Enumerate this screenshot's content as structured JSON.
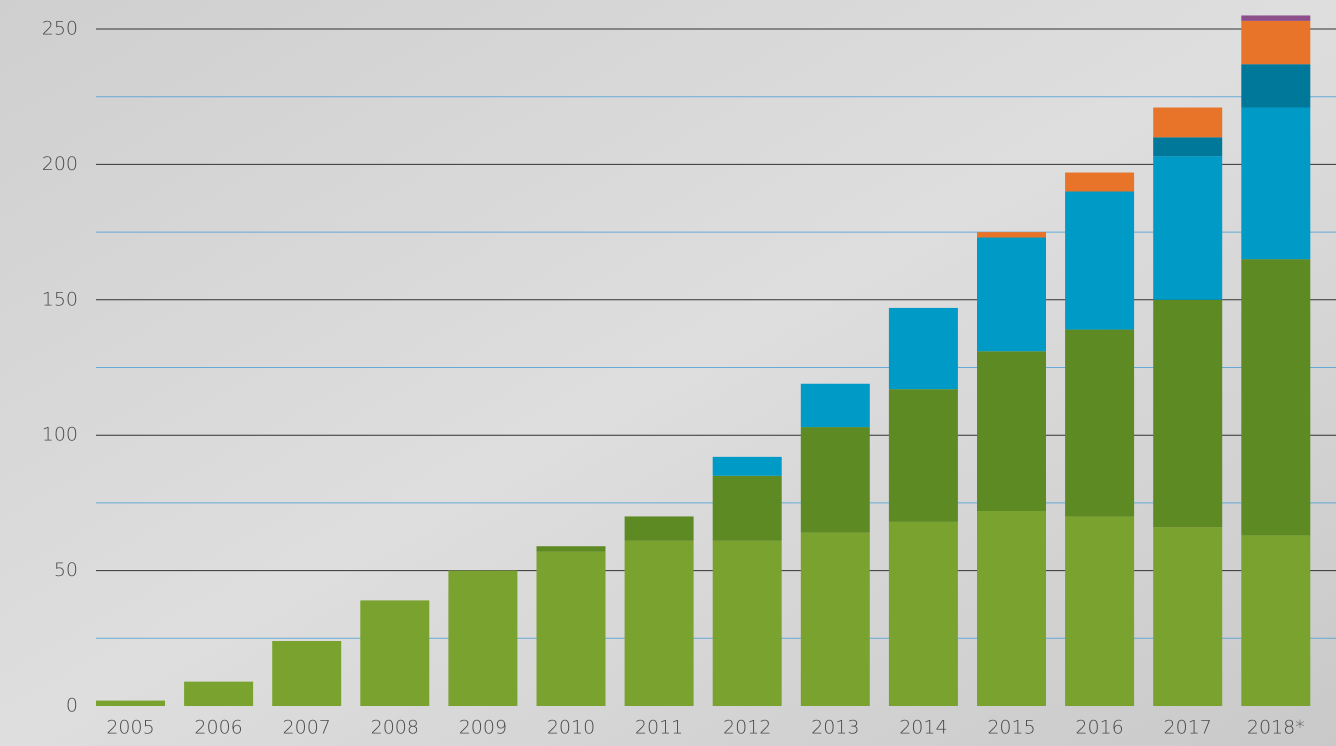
{
  "chart_data": {
    "type": "stacked-bar",
    "categories": [
      "2005",
      "2006",
      "2007",
      "2008",
      "2009",
      "2010",
      "2011",
      "2012",
      "2013",
      "2014",
      "2015",
      "2016",
      "2017",
      "2018*"
    ],
    "series": [
      {
        "color": "#7aa22f",
        "values": [
          2,
          9,
          24,
          39,
          50,
          57,
          61,
          61,
          64,
          68,
          72,
          70,
          66,
          63
        ]
      },
      {
        "color": "#5e8a24",
        "values": [
          null,
          null,
          null,
          null,
          null,
          2,
          9,
          24,
          39,
          49,
          59,
          69,
          84,
          102
        ]
      },
      {
        "color": "#009ac7",
        "values": [
          null,
          null,
          null,
          null,
          null,
          null,
          null,
          7,
          16,
          30,
          42,
          51,
          53,
          56
        ]
      },
      {
        "color": "#00789a",
        "values": [
          null,
          null,
          null,
          null,
          null,
          null,
          null,
          null,
          null,
          null,
          null,
          null,
          7,
          16
        ]
      },
      {
        "color": "#e8742a",
        "values": [
          null,
          null,
          null,
          null,
          null,
          null,
          null,
          null,
          null,
          null,
          2,
          7,
          11,
          16
        ]
      },
      {
        "color": "#8d4e8c",
        "values": [
          null,
          null,
          null,
          null,
          null,
          null,
          null,
          null,
          null,
          null,
          null,
          null,
          null,
          2
        ]
      }
    ],
    "ylim": [
      0,
      250
    ],
    "yticks": [
      0,
      50,
      100,
      150,
      200,
      250
    ],
    "grid": true
  }
}
